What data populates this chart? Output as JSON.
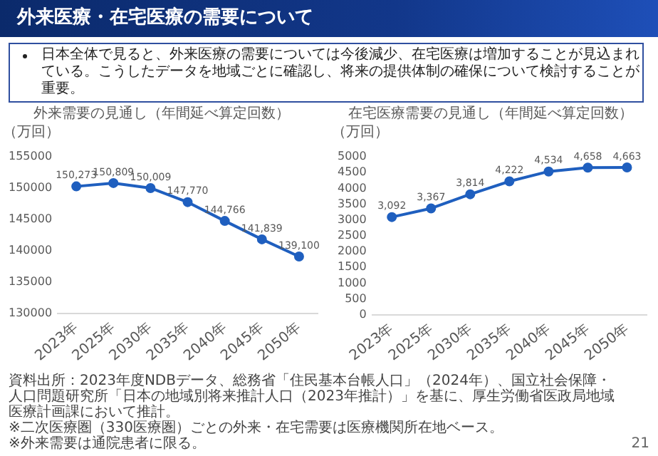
{
  "chart_data": [
    {
      "type": "line",
      "title": "外来需要の見通し（年間延べ算定回数）",
      "ylabel": "（万回）",
      "annotations": [
        "外来医療・在宅医療の需要について",
        "日本全体で見ると、外来医療の需要については今後減少、在宅医療は増加することが見込まれている。こうしたデータを地域ごとに確認し、将来の提供体制の確保について検討することが重要。"
      ],
      "categories": [
        "2023年",
        "2025年",
        "2030年",
        "2035年",
        "2040年",
        "2045年",
        "2050年"
      ],
      "series": [
        {
          "color": "#1f5fbf",
          "values": [
            150273,
            150809,
            150009,
            147770,
            144766,
            141839,
            139100
          ],
          "value_labels": [
            "150,273",
            "150,809",
            "150,009",
            "147,770",
            "144,766",
            "141,839",
            "139,100"
          ]
        }
      ],
      "ylim": [
        130000,
        155000
      ],
      "yticks": [
        130000,
        135000,
        140000,
        145000,
        150000,
        155000
      ],
      "grid": false,
      "legend": false,
      "marker": "circle"
    },
    {
      "type": "line",
      "title": "在宅医療需要の見通し（年間延べ算定回数）",
      "ylabel": "（万回）",
      "annotations": [
        "資料出所：2023年度NDBデータ、総務省「住民基本台帳人口」（2024年）、国立社会保障・人口問題研究所「日本の地域別将来推計人口（2023年推計）」を基に、厚生労働省医政局地域医療計画課において推計。",
        "※二次医療圏（330医療圏）ごとの外来・在宅需要は医療機関所在地ベース。",
        "※外来需要は通院患者に限る。",
        "21"
      ],
      "categories": [
        "2023年",
        "2025年",
        "2030年",
        "2035年",
        "2040年",
        "2045年",
        "2050年"
      ],
      "series": [
        {
          "color": "#1f5fbf",
          "values": [
            3092,
            3367,
            3814,
            4222,
            4534,
            4658,
            4663
          ],
          "value_labels": [
            "3,092",
            "3,367",
            "3,814",
            "4,222",
            "4,534",
            "4,658",
            "4,663"
          ]
        }
      ],
      "ylim": [
        0,
        5000
      ],
      "yticks": [
        0,
        500,
        1000,
        1500,
        2000,
        2500,
        3000,
        3500,
        4000,
        4500,
        5000
      ],
      "grid": false,
      "legend": false,
      "marker": "circle"
    }
  ]
}
